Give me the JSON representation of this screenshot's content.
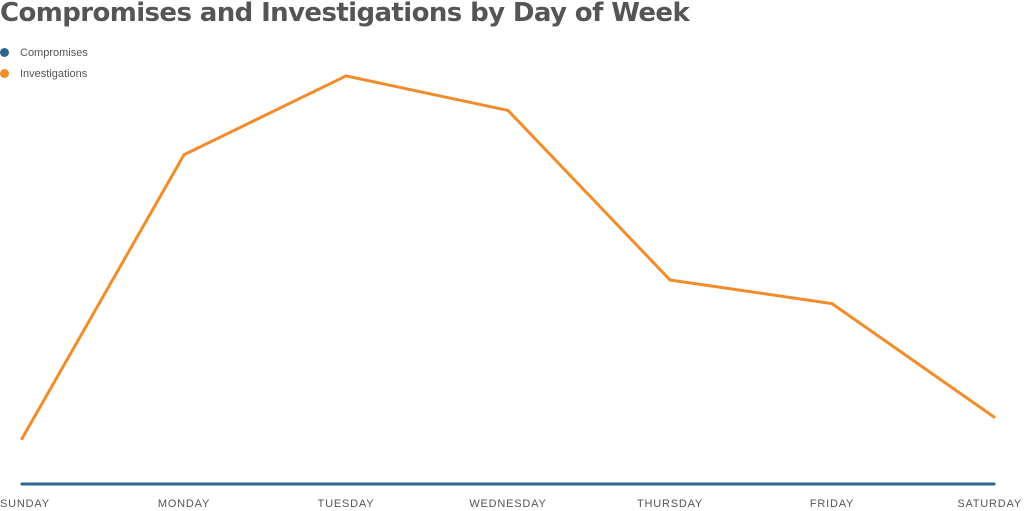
{
  "chart_data": {
    "type": "line",
    "title": "Compromises and Investigations by Day of Week",
    "categories": [
      "SUNDAY",
      "MONDAY",
      "TUESDAY",
      "WEDNESDAY",
      "THURSDAY",
      "FRIDAY",
      "SATURDAY"
    ],
    "series": [
      {
        "name": "Compromises",
        "color": "#2e6590",
        "values": [
          0,
          0,
          0,
          0,
          0,
          0,
          0
        ]
      },
      {
        "name": "Investigations",
        "color": "#f28c2b",
        "values": [
          46,
          334,
          414,
          379,
          207,
          183,
          68
        ]
      }
    ],
    "ylim": [
      0,
      420
    ],
    "grid": false,
    "legend_position": "top-left"
  }
}
